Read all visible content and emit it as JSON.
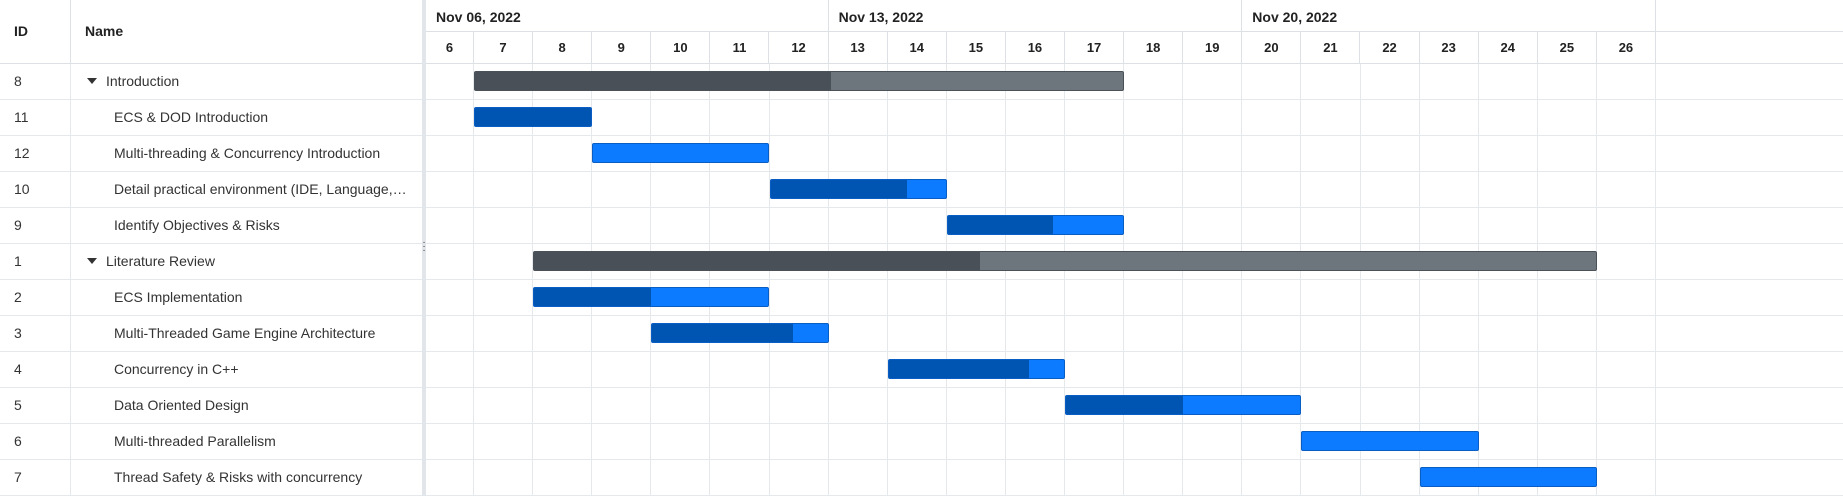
{
  "grid": {
    "columns": {
      "id": "ID",
      "name": "Name"
    },
    "rows": [
      {
        "id": "8",
        "name": "Introduction",
        "parent": true
      },
      {
        "id": "11",
        "name": "ECS & DOD Introduction",
        "parent": false
      },
      {
        "id": "12",
        "name": "Multi-threading & Concurrency Introduction",
        "parent": false
      },
      {
        "id": "10",
        "name": "Detail practical environment (IDE, Language, Libraries)",
        "parent": false
      },
      {
        "id": "9",
        "name": "Identify Objectives & Risks",
        "parent": false
      },
      {
        "id": "1",
        "name": "Literature Review",
        "parent": true
      },
      {
        "id": "2",
        "name": "ECS Implementation",
        "parent": false
      },
      {
        "id": "3",
        "name": "Multi-Threaded Game Engine Architecture",
        "parent": false
      },
      {
        "id": "4",
        "name": "Concurrency in C++",
        "parent": false
      },
      {
        "id": "5",
        "name": "Data Oriented Design",
        "parent": false
      },
      {
        "id": "6",
        "name": "Multi-threaded Parallelism",
        "parent": false
      },
      {
        "id": "7",
        "name": "Thread Safety & Risks with concurrency",
        "parent": false
      }
    ]
  },
  "timeline": {
    "first_day": 6,
    "months": [
      {
        "label": "Nov 06, 2022",
        "start_day": 6,
        "end_day": 12
      },
      {
        "label": "Nov 13, 2022",
        "start_day": 13,
        "end_day": 19
      },
      {
        "label": "Nov 20, 2022",
        "start_day": 20,
        "end_day": 26
      }
    ],
    "days": [
      "6",
      "7",
      "8",
      "9",
      "10",
      "11",
      "12",
      "13",
      "14",
      "15",
      "16",
      "17",
      "18",
      "19",
      "20",
      "21",
      "22",
      "23",
      "24",
      "25",
      "26"
    ]
  },
  "tasks": [
    {
      "row": 0,
      "start": 7,
      "end": 18,
      "progress": 0.55,
      "parent": true
    },
    {
      "row": 1,
      "start": 7,
      "end": 9,
      "progress": 1.0,
      "parent": false
    },
    {
      "row": 2,
      "start": 9,
      "end": 12,
      "progress": 0.0,
      "parent": false
    },
    {
      "row": 3,
      "start": 12,
      "end": 15,
      "progress": 0.78,
      "parent": false
    },
    {
      "row": 4,
      "start": 15,
      "end": 18,
      "progress": 0.6,
      "parent": false
    },
    {
      "row": 5,
      "start": 8,
      "end": 26,
      "progress": 0.42,
      "parent": true
    },
    {
      "row": 6,
      "start": 8,
      "end": 12,
      "progress": 0.5,
      "parent": false
    },
    {
      "row": 7,
      "start": 10,
      "end": 13,
      "progress": 0.8,
      "parent": false
    },
    {
      "row": 8,
      "start": 14,
      "end": 17,
      "progress": 0.8,
      "parent": false
    },
    {
      "row": 9,
      "start": 17,
      "end": 21,
      "progress": 0.5,
      "parent": false
    },
    {
      "row": 10,
      "start": 21,
      "end": 24,
      "progress": 0.0,
      "parent": false
    },
    {
      "row": 11,
      "start": 23,
      "end": 26,
      "progress": 0.0,
      "parent": false
    }
  ],
  "colors": {
    "parent_bar": "#6d757d",
    "parent_progress": "#495057",
    "task_bar": "#0d7bff",
    "task_progress": "#0055b3"
  }
}
